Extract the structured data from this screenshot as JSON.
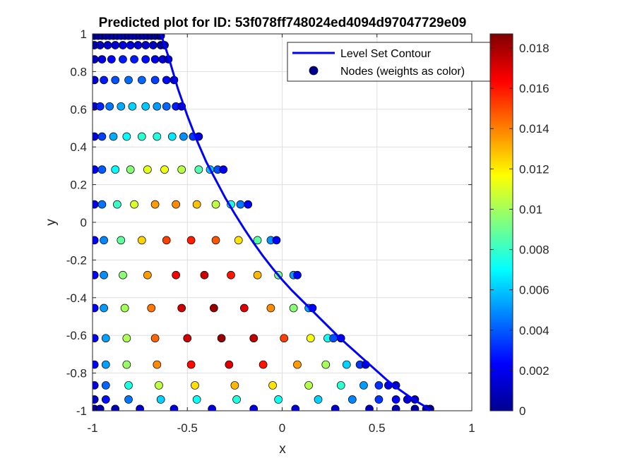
{
  "chart_data": {
    "type": "scatter",
    "title": "Predicted plot for ID: 53f078ff748024ed4094d97047729e09",
    "xlabel": "x",
    "ylabel": "y",
    "xlim": [
      -1,
      1
    ],
    "ylim": [
      -1,
      1
    ],
    "xticks": [
      -1,
      -0.5,
      0,
      0.5,
      1
    ],
    "xtick_labels": [
      "-1",
      "-0.5",
      "0",
      "0.5",
      "1"
    ],
    "yticks": [
      -1,
      -0.8,
      -0.6,
      -0.4,
      -0.2,
      0,
      0.2,
      0.4,
      0.6,
      0.8,
      1
    ],
    "ytick_labels": [
      "-1",
      "-0.8",
      "-0.6",
      "-0.4",
      "-0.2",
      "0",
      "0.2",
      "0.4",
      "0.6",
      "0.8",
      "1"
    ],
    "grid": true,
    "legend_position": "top-right",
    "legend": [
      "Level Set Contour",
      "Nodes (weights as color)"
    ],
    "colors": {
      "contour": "#0000ff",
      "node_edge": "#000000",
      "legend_marker": "#00008f"
    },
    "colormap": "jet",
    "colorbar": {
      "clim": [
        0,
        0.0187
      ],
      "ticks": [
        0,
        0.002,
        0.004,
        0.006,
        0.008,
        0.01,
        0.012,
        0.014,
        0.016,
        0.018
      ],
      "tick_labels": [
        "0",
        "0.002",
        "0.004",
        "0.006",
        "0.008",
        "0.01",
        "0.012",
        "0.014",
        "0.016",
        "0.018"
      ]
    },
    "series": [
      {
        "name": "Level Set Contour",
        "kind": "line",
        "x": [
          -0.64,
          -0.6,
          -0.55,
          -0.5,
          -0.45,
          -0.4,
          -0.35,
          -0.3,
          -0.25,
          -0.2,
          -0.15,
          -0.1,
          -0.05,
          0,
          0.05,
          0.1,
          0.15,
          0.2,
          0.25,
          0.3,
          0.35,
          0.4,
          0.45,
          0.5,
          0.55,
          0.6,
          0.65,
          0.7,
          0.75,
          0.78
        ],
        "y": [
          1,
          0.88,
          0.71,
          0.565,
          0.435,
          0.32,
          0.225,
          0.13,
          0.045,
          -0.035,
          -0.11,
          -0.18,
          -0.245,
          -0.305,
          -0.36,
          -0.41,
          -0.46,
          -0.51,
          -0.56,
          -0.61,
          -0.655,
          -0.7,
          -0.745,
          -0.79,
          -0.835,
          -0.875,
          -0.91,
          -0.945,
          -0.975,
          -1
        ]
      },
      {
        "name": "Nodes (weights as color)",
        "kind": "scatter",
        "rows": [
          {
            "y": 0.99,
            "x": [
              -0.99,
              -0.97,
              -0.95,
              -0.93,
              -0.91,
              -0.89,
              -0.87,
              -0.85,
              -0.83,
              -0.81,
              -0.79,
              -0.77,
              -0.75,
              -0.73,
              -0.71,
              -0.69,
              -0.67,
              -0.65,
              -0.64
            ],
            "w": [
              0.0002,
              0.0003,
              0.0004,
              0.0005,
              0.0005,
              0.0006,
              0.0006,
              0.0006,
              0.0006,
              0.0006,
              0.0006,
              0.0006,
              0.0006,
              0.0005,
              0.0005,
              0.0004,
              0.0003,
              0.0003,
              0.0002
            ]
          },
          {
            "y": 0.94,
            "x": [
              -0.99,
              -0.96,
              -0.92,
              -0.88,
              -0.84,
              -0.8,
              -0.76,
              -0.72,
              -0.68,
              -0.64,
              -0.62
            ],
            "w": [
              0.0006,
              0.001,
              0.0013,
              0.0015,
              0.0016,
              0.0016,
              0.0015,
              0.0013,
              0.001,
              0.0007,
              0.0005
            ]
          },
          {
            "y": 0.865,
            "x": [
              -0.99,
              -0.95,
              -0.9,
              -0.84,
              -0.78,
              -0.72,
              -0.67,
              -0.63,
              -0.6
            ],
            "w": [
              0.001,
              0.0018,
              0.0024,
              0.0028,
              0.0028,
              0.0025,
              0.002,
              0.0014,
              0.0008
            ]
          },
          {
            "y": 0.755,
            "x": [
              -0.99,
              -0.94,
              -0.88,
              -0.81,
              -0.74,
              -0.67,
              -0.61,
              -0.57
            ],
            "w": [
              0.0015,
              0.0028,
              0.0038,
              0.0043,
              0.0042,
              0.0035,
              0.0025,
              0.0013
            ]
          },
          {
            "y": 0.615,
            "x": [
              -0.99,
              -0.96,
              -0.91,
              -0.85,
              -0.79,
              -0.72,
              -0.66,
              -0.61,
              -0.56,
              -0.53
            ],
            "w": [
              0.0018,
              0.003,
              0.0045,
              0.0055,
              0.0062,
              0.006,
              0.0052,
              0.0042,
              0.0028,
              0.0015
            ]
          },
          {
            "y": 0.455,
            "x": [
              -0.99,
              -0.95,
              -0.89,
              -0.82,
              -0.74,
              -0.66,
              -0.58,
              -0.52,
              -0.47,
              -0.44
            ],
            "w": [
              0.0018,
              0.0035,
              0.0055,
              0.007,
              0.0078,
              0.0076,
              0.0066,
              0.005,
              0.0033,
              0.0018
            ]
          },
          {
            "y": 0.28,
            "x": [
              -0.99,
              -0.95,
              -0.88,
              -0.8,
              -0.71,
              -0.62,
              -0.53,
              -0.44,
              -0.38,
              -0.34,
              -0.31
            ],
            "w": [
              0.0022,
              0.004,
              0.007,
              0.0095,
              0.0112,
              0.0114,
              0.0104,
              0.0085,
              0.006,
              0.0038,
              0.002
            ]
          },
          {
            "y": 0.095,
            "x": [
              -0.99,
              -0.95,
              -0.87,
              -0.78,
              -0.67,
              -0.56,
              -0.45,
              -0.35,
              -0.27,
              -0.22,
              -0.18
            ],
            "w": [
              0.0022,
              0.0045,
              0.008,
              0.011,
              0.0135,
              0.0138,
              0.0128,
              0.0105,
              0.0075,
              0.0045,
              0.0023
            ]
          },
          {
            "y": -0.095,
            "x": [
              -0.99,
              -0.94,
              -0.85,
              -0.74,
              -0.61,
              -0.48,
              -0.35,
              -0.23,
              -0.13,
              -0.06,
              -0.03
            ],
            "w": [
              0.0023,
              0.0048,
              0.0088,
              0.0125,
              0.0152,
              0.0158,
              0.0148,
              0.0122,
              0.0087,
              0.005,
              0.0024
            ]
          },
          {
            "y": -0.28,
            "x": [
              -0.99,
              -0.94,
              -0.84,
              -0.71,
              -0.56,
              -0.41,
              -0.27,
              -0.13,
              -0.02,
              0.06,
              0.08
            ],
            "w": [
              0.0023,
              0.005,
              0.0095,
              0.0135,
              0.0165,
              0.0172,
              0.016,
              0.013,
              0.0092,
              0.0052,
              0.0024
            ]
          },
          {
            "y": -0.455,
            "x": [
              -0.99,
              -0.94,
              -0.83,
              -0.69,
              -0.53,
              -0.36,
              -0.2,
              -0.06,
              0.06,
              0.14,
              0.16
            ],
            "w": [
              0.0023,
              0.0052,
              0.01,
              0.0142,
              0.0172,
              0.0183,
              0.017,
              0.0138,
              0.0095,
              0.0053,
              0.0024
            ]
          },
          {
            "y": -0.615,
            "x": [
              -0.99,
              -0.93,
              -0.82,
              -0.67,
              -0.5,
              -0.32,
              -0.15,
              0.01,
              0.15,
              0.24,
              0.27,
              0.31
            ],
            "w": [
              0.0023,
              0.0053,
              0.0102,
              0.0145,
              0.0172,
              0.0182,
              0.0175,
              0.0152,
              0.0115,
              0.0072,
              0.0038,
              0.002
            ]
          },
          {
            "y": -0.755,
            "x": [
              -0.99,
              -0.93,
              -0.82,
              -0.66,
              -0.48,
              -0.28,
              -0.1,
              0.08,
              0.23,
              0.34,
              0.41,
              0.44
            ],
            "w": [
              0.0023,
              0.0053,
              0.0098,
              0.0138,
              0.0162,
              0.017,
              0.016,
              0.0135,
              0.01,
              0.0062,
              0.0033,
              0.0018
            ]
          },
          {
            "y": -0.865,
            "x": [
              -0.99,
              -0.93,
              -0.81,
              -0.65,
              -0.46,
              -0.25,
              -0.05,
              0.14,
              0.31,
              0.43,
              0.51,
              0.56,
              0.6
            ],
            "w": [
              0.0018,
              0.0042,
              0.0075,
              0.0105,
              0.0123,
              0.013,
              0.0122,
              0.0103,
              0.0078,
              0.0052,
              0.0032,
              0.0018,
              0.001
            ]
          },
          {
            "y": -0.94,
            "x": [
              -0.99,
              -0.93,
              -0.81,
              -0.64,
              -0.45,
              -0.24,
              -0.02,
              0.19,
              0.37,
              0.51,
              0.6,
              0.66,
              0.7
            ],
            "w": [
              0.0012,
              0.0026,
              0.0045,
              0.0062,
              0.0072,
              0.0076,
              0.0072,
              0.0062,
              0.0048,
              0.0033,
              0.0022,
              0.0013,
              0.0008
            ]
          },
          {
            "y": -0.99,
            "x": [
              -0.99,
              -0.96,
              -0.88,
              -0.75,
              -0.57,
              -0.37,
              -0.15,
              0.07,
              0.28,
              0.46,
              0.6,
              0.7,
              0.76,
              0.78
            ],
            "w": [
              0.0003,
              0.0006,
              0.001,
              0.0014,
              0.0016,
              0.0017,
              0.0017,
              0.0016,
              0.0014,
              0.0011,
              0.0008,
              0.0005,
              0.0003,
              0.0002
            ]
          }
        ]
      }
    ]
  }
}
